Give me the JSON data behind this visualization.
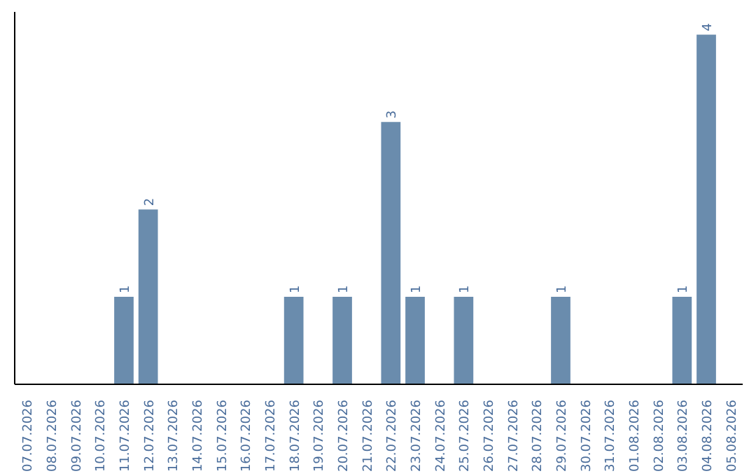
{
  "chart_data": {
    "type": "bar",
    "categories": [
      "07.07.2026",
      "08.07.2026",
      "09.07.2026",
      "10.07.2026",
      "11.07.2026",
      "12.07.2026",
      "13.07.2026",
      "14.07.2026",
      "15.07.2026",
      "16.07.2026",
      "17.07.2026",
      "18.07.2026",
      "19.07.2026",
      "20.07.2026",
      "21.07.2026",
      "22.07.2026",
      "23.07.2026",
      "24.07.2026",
      "25.07.2026",
      "26.07.2026",
      "27.07.2026",
      "28.07.2026",
      "29.07.2026",
      "30.07.2026",
      "31.07.2026",
      "01.08.2026",
      "02.08.2026",
      "03.08.2026",
      "04.08.2026",
      "05.08.2026"
    ],
    "values": [
      0,
      0,
      0,
      0,
      1,
      2,
      0,
      0,
      0,
      0,
      0,
      1,
      0,
      1,
      0,
      3,
      1,
      0,
      1,
      0,
      0,
      0,
      1,
      0,
      0,
      0,
      0,
      1,
      4,
      0
    ],
    "value_labels": [
      null,
      null,
      null,
      null,
      "1",
      "2",
      null,
      null,
      null,
      null,
      null,
      "1",
      null,
      "1",
      null,
      "3",
      "1",
      null,
      "1",
      null,
      null,
      null,
      "1",
      null,
      null,
      null,
      null,
      "1",
      "4",
      null
    ],
    "color": "#6a8cad",
    "grid": false
  }
}
